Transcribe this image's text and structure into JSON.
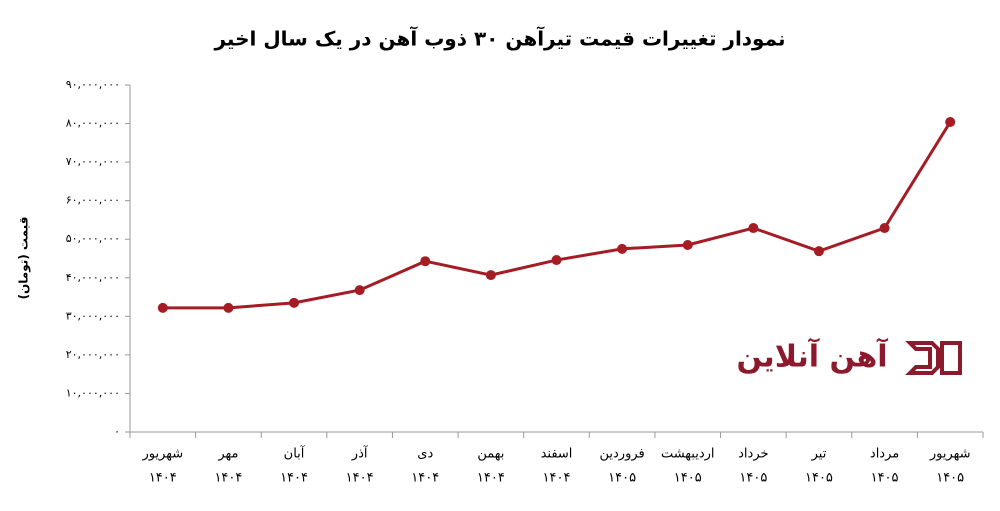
{
  "chart_data": {
    "type": "line",
    "title": "نمودار تغییرات قیمت تیرآهن ۳۰ ذوب آهن در یک سال اخیر",
    "y_label": "قیمت (تومان)",
    "watermark": "آهن آنلاین",
    "categories": [
      [
        "شهریور",
        "۱۴۰۴"
      ],
      [
        "مهر",
        "۱۴۰۴"
      ],
      [
        "آبان",
        "۱۴۰۴"
      ],
      [
        "آذر",
        "۱۴۰۴"
      ],
      [
        "دی",
        "۱۴۰۴"
      ],
      [
        "بهمن",
        "۱۴۰۴"
      ],
      [
        "اسفند",
        "۱۴۰۴"
      ],
      [
        "فروردین",
        "۱۴۰۵"
      ],
      [
        "اردیبهشت",
        "۱۴۰۵"
      ],
      [
        "خرداد",
        "۱۴۰۵"
      ],
      [
        "تیر",
        "۱۴۰۵"
      ],
      [
        "مرداد",
        "۱۴۰۵"
      ],
      [
        "شهریور",
        "۱۴۰۵"
      ]
    ],
    "values": [
      32200000,
      32200000,
      33500000,
      36800000,
      44300000,
      40700000,
      44600000,
      47500000,
      48500000,
      52900000,
      46900000,
      52900000,
      80400000
    ],
    "color": "#a51c24",
    "ylim": [
      0,
      90000000
    ],
    "yticks": [
      {
        "value": 0,
        "label": "۰"
      },
      {
        "value": 10000000,
        "label": "۱۰,۰۰۰,۰۰۰"
      },
      {
        "value": 20000000,
        "label": "۲۰,۰۰۰,۰۰۰"
      },
      {
        "value": 30000000,
        "label": "۳۰,۰۰۰,۰۰۰"
      },
      {
        "value": 40000000,
        "label": "۴۰,۰۰۰,۰۰۰"
      },
      {
        "value": 50000000,
        "label": "۵۰,۰۰۰,۰۰۰"
      },
      {
        "value": 60000000,
        "label": "۶۰,۰۰۰,۰۰۰"
      },
      {
        "value": 70000000,
        "label": "۷۰,۰۰۰,۰۰۰"
      },
      {
        "value": 80000000,
        "label": "۸۰,۰۰۰,۰۰۰"
      },
      {
        "value": 90000000,
        "label": "۹۰,۰۰۰,۰۰۰"
      }
    ],
    "grid": false
  }
}
